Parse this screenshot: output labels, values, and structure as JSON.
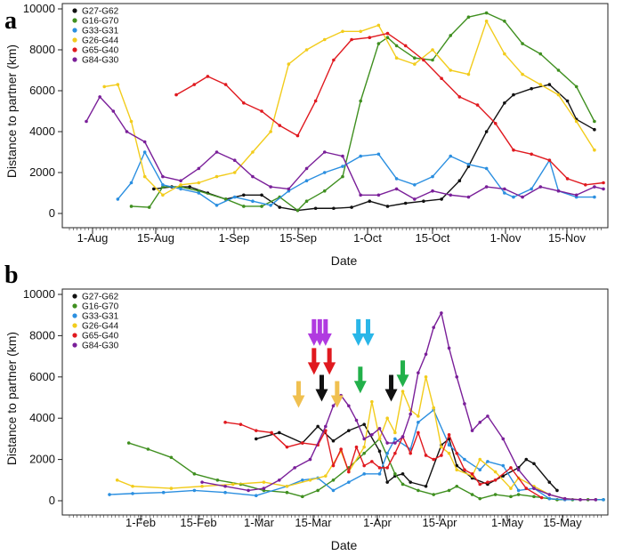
{
  "colors": {
    "G27-G62": "#111111",
    "G16-G70": "#3f8f1f",
    "G33-G31": "#2b8fe0",
    "G26-G44": "#f2cc1c",
    "G65-G40": "#e0191f",
    "G84-G30": "#7a1f99",
    "arrow_purple": "#b03ae0",
    "arrow_cyan": "#29b6e8",
    "arrow_green": "#22b04a",
    "arrow_red": "#e0191f",
    "arrow_black": "#111111",
    "arrow_yellow": "#f0c050"
  },
  "chart_data": [
    {
      "type": "line",
      "panel": "a",
      "xlabel": "Date",
      "ylabel": "Distance to partner (km)",
      "ylim": [
        0,
        10000
      ],
      "yticks": [
        "0",
        "2000",
        "4000",
        "6000",
        "8000",
        "10000"
      ],
      "xticks": [
        "1-Aug",
        "15-Aug",
        "1-Sep",
        "15-Sep",
        "1-Oct",
        "15-Oct",
        "1-Nov",
        "15-Nov"
      ],
      "xlim": [
        -5,
        110
      ],
      "legend_position": "top-left",
      "series": [
        {
          "name": "G27-G62",
          "x": [
            10,
            14,
            18,
            22,
            26,
            30,
            34,
            38,
            42,
            46,
            50,
            54,
            58,
            62,
            66,
            70,
            74,
            78,
            80,
            84,
            88,
            90,
            94,
            98,
            102,
            104,
            108
          ],
          "y": [
            1200,
            1300,
            1300,
            1000,
            700,
            900,
            900,
            300,
            150,
            250,
            250,
            300,
            600,
            350,
            500,
            600,
            700,
            1600,
            2300,
            4000,
            5400,
            5800,
            6100,
            6300,
            5500,
            4600,
            4100
          ]
        },
        {
          "name": "G16-G70",
          "x": [
            5,
            9,
            12,
            16,
            20,
            26,
            30,
            34,
            38,
            42,
            44,
            48,
            52,
            56,
            60,
            62,
            64,
            68,
            72,
            76,
            80,
            84,
            88,
            92,
            96,
            100,
            104,
            108
          ],
          "y": [
            350,
            300,
            1300,
            1300,
            1100,
            700,
            350,
            350,
            800,
            150,
            600,
            1100,
            1800,
            5500,
            8300,
            8600,
            8200,
            7600,
            7500,
            8700,
            9600,
            9800,
            9400,
            8300,
            7800,
            7000,
            6200,
            4500
          ]
        },
        {
          "name": "G33-G31",
          "x": [
            2,
            5,
            8,
            12,
            16,
            20,
            24,
            28,
            32,
            36,
            40,
            44,
            48,
            52,
            56,
            60,
            64,
            68,
            72,
            76,
            80,
            84,
            88,
            90,
            94,
            98,
            100,
            104,
            108
          ],
          "y": [
            700,
            1500,
            3000,
            1400,
            1200,
            1000,
            400,
            800,
            600,
            400,
            1100,
            1600,
            2000,
            2300,
            2800,
            2900,
            1700,
            1400,
            1800,
            2800,
            2400,
            2200,
            1000,
            800,
            1200,
            2600,
            1100,
            800,
            800
          ]
        },
        {
          "name": "G26-G44",
          "x": [
            -1,
            2,
            5,
            8,
            12,
            16,
            20,
            24,
            28,
            32,
            36,
            40,
            44,
            48,
            52,
            56,
            60,
            64,
            68,
            72,
            76,
            80,
            84,
            88,
            92,
            96,
            100,
            104,
            108
          ],
          "y": [
            6200,
            6300,
            4500,
            1800,
            900,
            1400,
            1500,
            1800,
            2000,
            3000,
            4000,
            7300,
            8000,
            8500,
            8900,
            8900,
            9200,
            7600,
            7300,
            8000,
            7000,
            6800,
            9400,
            7800,
            6800,
            6300,
            5800,
            4500,
            3100
          ]
        },
        {
          "name": "G65-G40",
          "x": [
            15,
            19,
            22,
            26,
            30,
            34,
            38,
            42,
            46,
            50,
            54,
            58,
            62,
            66,
            70,
            74,
            78,
            82,
            86,
            90,
            94,
            98,
            102,
            106,
            110
          ],
          "y": [
            5800,
            6300,
            6700,
            6300,
            5400,
            5000,
            4300,
            3800,
            5500,
            7500,
            8500,
            8600,
            8800,
            8200,
            7500,
            6600,
            5700,
            5300,
            4400,
            3100,
            2900,
            2600,
            1700,
            1400,
            1500
          ]
        },
        {
          "name": "G84-G30",
          "x": [
            -5,
            -2,
            1,
            4,
            8,
            12,
            16,
            20,
            24,
            28,
            32,
            36,
            40,
            44,
            48,
            52,
            56,
            60,
            64,
            68,
            72,
            76,
            80,
            84,
            88,
            92,
            96,
            100,
            104,
            108,
            110
          ],
          "y": [
            4500,
            5700,
            5000,
            4000,
            3500,
            1800,
            1600,
            2200,
            3000,
            2600,
            1800,
            1300,
            1200,
            2200,
            3000,
            2800,
            900,
            900,
            1200,
            700,
            1100,
            900,
            800,
            1300,
            1200,
            800,
            1300,
            1100,
            900,
            1300,
            1200
          ]
        }
      ]
    },
    {
      "type": "line",
      "panel": "b",
      "xlabel": "Date",
      "ylabel": "Distance to partner (km)",
      "ylim": [
        0,
        10000
      ],
      "yticks": [
        "0",
        "2000",
        "4000",
        "6000",
        "8000",
        "10000"
      ],
      "xticks": [
        "1-Feb",
        "15-Feb",
        "1-Mar",
        "15-Mar",
        "1-Apr",
        "15-Apr",
        "1-May",
        "15-May"
      ],
      "xlim": [
        -16,
        118
      ],
      "legend_position": "top-left",
      "series": [
        {
          "name": "G27-G62",
          "x": [
            28,
            34,
            40,
            44,
            48,
            52,
            56,
            60,
            62,
            64,
            66,
            68,
            72,
            76,
            78,
            80,
            84,
            88,
            92,
            96,
            98,
            100,
            104,
            106
          ],
          "y": [
            3000,
            3300,
            2800,
            3600,
            2900,
            3400,
            3700,
            2400,
            900,
            1200,
            1300,
            900,
            700,
            2700,
            3000,
            1700,
            1100,
            800,
            1200,
            1600,
            2000,
            1800,
            900,
            500
          ]
        },
        {
          "name": "G16-G70",
          "x": [
            -5,
            0,
            6,
            12,
            18,
            24,
            30,
            36,
            40,
            44,
            48,
            52,
            56,
            60,
            64,
            66,
            70,
            74,
            78,
            80,
            84,
            86,
            90,
            94,
            96,
            100,
            104,
            106,
            110,
            114,
            118
          ],
          "y": [
            2800,
            2500,
            2100,
            1300,
            1000,
            800,
            500,
            400,
            200,
            500,
            1000,
            1600,
            2300,
            3000,
            1300,
            800,
            500,
            300,
            500,
            700,
            300,
            100,
            300,
            200,
            300,
            200,
            100,
            50,
            50,
            50,
            50
          ]
        },
        {
          "name": "G33-G31",
          "x": [
            -10,
            -4,
            4,
            12,
            20,
            28,
            36,
            40,
            44,
            48,
            52,
            56,
            60,
            62,
            64,
            68,
            70,
            74,
            78,
            82,
            86,
            88,
            92,
            96,
            100,
            104,
            108,
            112,
            116,
            118
          ],
          "y": [
            300,
            350,
            400,
            500,
            400,
            250,
            700,
            1000,
            1100,
            500,
            900,
            1300,
            1300,
            2300,
            3000,
            2500,
            3800,
            4400,
            2700,
            2000,
            1500,
            1900,
            1700,
            500,
            600,
            100,
            50,
            50,
            50,
            50
          ]
        },
        {
          "name": "G26-G44",
          "x": [
            -8,
            -4,
            6,
            14,
            22,
            30,
            36,
            42,
            46,
            50,
            52,
            56,
            58,
            60,
            62,
            64,
            66,
            68,
            70,
            72,
            74,
            76,
            78,
            80,
            84,
            86,
            90,
            94,
            96,
            100,
            104,
            108,
            112,
            116
          ],
          "y": [
            1000,
            700,
            600,
            700,
            800,
            900,
            700,
            1000,
            1200,
            2400,
            1400,
            2600,
            4800,
            3000,
            4000,
            3300,
            5300,
            4400,
            4100,
            6000,
            4500,
            2600,
            2300,
            1500,
            1200,
            2000,
            1400,
            600,
            1100,
            700,
            300,
            100,
            50,
            50
          ]
        },
        {
          "name": "G65-G40",
          "x": [
            20,
            24,
            28,
            32,
            36,
            40,
            44,
            46,
            48,
            50,
            52,
            54,
            56,
            58,
            60,
            62,
            64,
            66,
            68,
            70,
            72,
            74,
            76,
            78,
            80,
            82,
            84,
            86,
            88,
            90,
            94,
            98,
            102
          ],
          "y": [
            3800,
            3700,
            3400,
            3300,
            2600,
            2800,
            2700,
            3400,
            1700,
            2500,
            1400,
            2600,
            1700,
            1900,
            1600,
            1600,
            2300,
            3100,
            2300,
            3300,
            2200,
            2000,
            2200,
            3200,
            2300,
            1500,
            1300,
            800,
            900,
            1000,
            1600,
            600,
            150
          ]
        },
        {
          "name": "G84-G30",
          "x": [
            14,
            20,
            26,
            30,
            34,
            38,
            42,
            46,
            48,
            50,
            52,
            54,
            56,
            58,
            60,
            62,
            64,
            66,
            68,
            70,
            72,
            74,
            76,
            78,
            80,
            82,
            84,
            86,
            88,
            92,
            96,
            100,
            104,
            108,
            112,
            116
          ],
          "y": [
            900,
            700,
            500,
            600,
            1000,
            1600,
            2000,
            3600,
            4600,
            5100,
            4600,
            3900,
            3000,
            3200,
            3500,
            2800,
            2800,
            3100,
            4200,
            6200,
            7100,
            8400,
            9100,
            7400,
            6000,
            4700,
            3400,
            3800,
            4100,
            3000,
            1500,
            600,
            300,
            100,
            50,
            50
          ]
        }
      ],
      "annotations": [
        {
          "type": "arrow",
          "color_key": "arrow_purple",
          "x": 43,
          "y": 8800
        },
        {
          "type": "arrow",
          "color_key": "arrow_purple",
          "x": 44.5,
          "y": 8800
        },
        {
          "type": "arrow",
          "color_key": "arrow_purple",
          "x": 46,
          "y": 8800
        },
        {
          "type": "arrow",
          "color_key": "arrow_cyan",
          "x": 54.5,
          "y": 8800
        },
        {
          "type": "arrow",
          "color_key": "arrow_cyan",
          "x": 57,
          "y": 8800
        },
        {
          "type": "arrow",
          "color_key": "arrow_red",
          "x": 43,
          "y": 7400
        },
        {
          "type": "arrow",
          "color_key": "arrow_red",
          "x": 47,
          "y": 7400
        },
        {
          "type": "arrow",
          "color_key": "arrow_green",
          "x": 55,
          "y": 6500
        },
        {
          "type": "arrow",
          "color_key": "arrow_green",
          "x": 66,
          "y": 6800
        },
        {
          "type": "arrow",
          "color_key": "arrow_black",
          "x": 45,
          "y": 6100
        },
        {
          "type": "arrow",
          "color_key": "arrow_black",
          "x": 63,
          "y": 6100
        },
        {
          "type": "arrow",
          "color_key": "arrow_yellow",
          "x": 39,
          "y": 5800
        },
        {
          "type": "arrow",
          "color_key": "arrow_yellow",
          "x": 49,
          "y": 5800
        }
      ]
    }
  ],
  "panels": {
    "a_label": "a",
    "b_label": "b"
  }
}
